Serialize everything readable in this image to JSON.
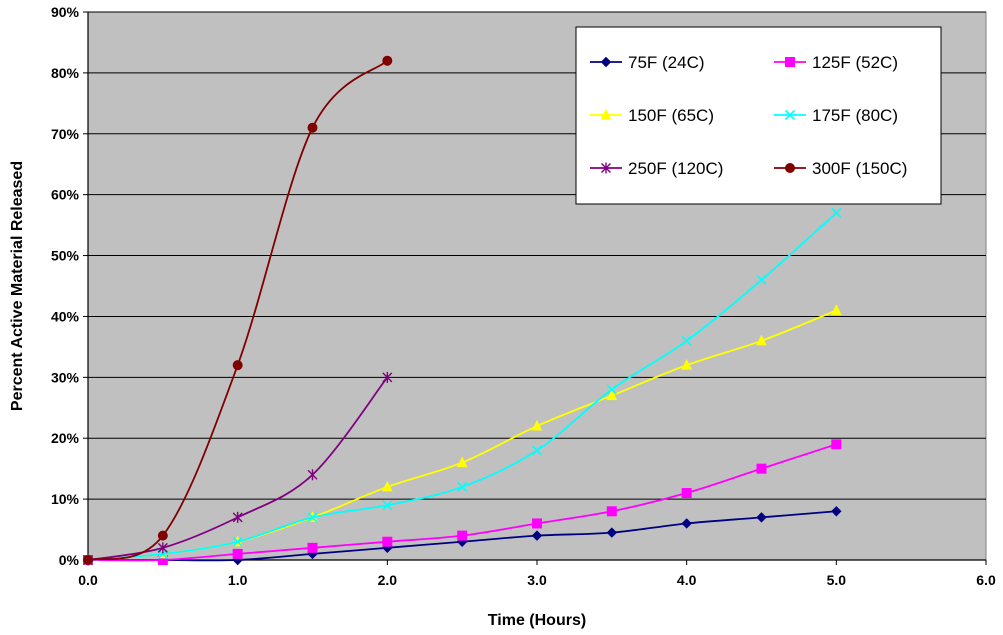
{
  "chart_data": {
    "type": "line",
    "title": "",
    "xlabel": "Time (Hours)",
    "ylabel": "Percent Active Material Released",
    "xlim": [
      0,
      6
    ],
    "ylim": [
      0,
      90
    ],
    "x_ticks": [
      "0.0",
      "1.0",
      "2.0",
      "3.0",
      "4.0",
      "5.0",
      "6.0"
    ],
    "y_ticks": [
      "0%",
      "10%",
      "20%",
      "30%",
      "40%",
      "50%",
      "60%",
      "70%",
      "80%",
      "90%"
    ],
    "grid": true,
    "plot_background": "#c0c0c0",
    "legend_position": "top-right",
    "series": [
      {
        "name": "75F (24C)",
        "color": "#000080",
        "marker": "diamond",
        "x": [
          0,
          0.5,
          1.0,
          1.5,
          2.0,
          2.5,
          3.0,
          3.5,
          4.0,
          4.5,
          5.0
        ],
        "y": [
          0,
          0,
          0,
          1,
          2,
          3,
          4,
          4.5,
          6,
          7,
          8
        ]
      },
      {
        "name": "125F (52C)",
        "color": "#ff00ff",
        "marker": "square",
        "x": [
          0,
          0.5,
          1.0,
          1.5,
          2.0,
          2.5,
          3.0,
          3.5,
          4.0,
          4.5,
          5.0
        ],
        "y": [
          0,
          0,
          1,
          2,
          3,
          4,
          6,
          8,
          11,
          15,
          19
        ]
      },
      {
        "name": "150F (65C)",
        "color": "#ffff00",
        "marker": "triangle",
        "x": [
          0,
          0.5,
          1.0,
          1.5,
          2.0,
          2.5,
          3.0,
          3.5,
          4.0,
          4.5,
          5.0
        ],
        "y": [
          0,
          1,
          3,
          7,
          12,
          16,
          22,
          27,
          32,
          36,
          41
        ]
      },
      {
        "name": "175F (80C)",
        "color": "#00ffff",
        "marker": "x",
        "x": [
          0,
          0.5,
          1.0,
          1.5,
          2.0,
          2.5,
          3.0,
          3.5,
          4.0,
          4.5,
          5.0
        ],
        "y": [
          0,
          1,
          3,
          7,
          9,
          12,
          18,
          28,
          36,
          46,
          57
        ]
      },
      {
        "name": "250F (120C)",
        "color": "#800080",
        "marker": "star",
        "x": [
          0,
          0.5,
          1.0,
          1.5,
          2.0
        ],
        "y": [
          0,
          2,
          7,
          14,
          30
        ]
      },
      {
        "name": "300F (150C)",
        "color": "#800000",
        "marker": "circle",
        "x": [
          0,
          0.5,
          1.0,
          1.5,
          2.0
        ],
        "y": [
          0,
          4,
          32,
          71,
          82
        ]
      }
    ]
  }
}
